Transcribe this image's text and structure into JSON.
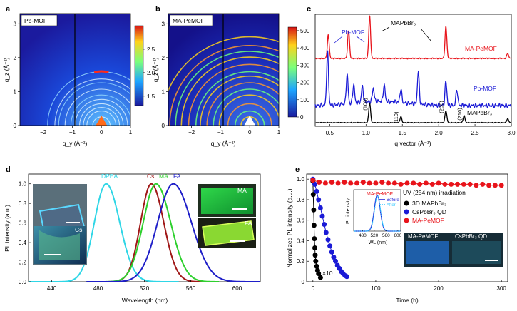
{
  "figure": {
    "panels": [
      "a",
      "b",
      "c",
      "d",
      "e"
    ]
  },
  "chart_data": [
    {
      "id": "a",
      "type": "heatmap",
      "inset_label": "Pb-MOF",
      "xlabel": "q_y (Å⁻¹)",
      "ylabel": "q_z (Å⁻¹)",
      "xlim": [
        -2.8,
        1.0
      ],
      "ylim": [
        0,
        3.3
      ],
      "xticks": [
        "−2",
        "−1",
        "0",
        "1"
      ],
      "yticks": [
        "0",
        "1",
        "2",
        "3"
      ],
      "colorbar": {
        "range": [
          1.3,
          3.0
        ],
        "ticks": [
          "1.5",
          "2.0",
          "2.5"
        ]
      },
      "rings_q": [
        0.3,
        0.5,
        0.62,
        0.75,
        0.9,
        1.05,
        1.25,
        1.47,
        1.6,
        1.85
      ],
      "bright_arc_q": 1.85
    },
    {
      "id": "b",
      "type": "heatmap",
      "inset_label": "MA-PeMOF",
      "xlabel": "q_y (Å⁻¹)",
      "ylabel": "q_z (Å⁻¹)",
      "xlim": [
        -2.8,
        1.0
      ],
      "ylim": [
        0,
        3.3
      ],
      "xticks": [
        "−2",
        "−1",
        "0",
        "1"
      ],
      "yticks": [
        "0",
        "1",
        "2",
        "3"
      ],
      "colorbar": {
        "range": [
          0,
          520
        ],
        "ticks": [
          "0",
          "100",
          "200",
          "300",
          "400",
          "500"
        ]
      },
      "rings_q": [
        0.3,
        0.5,
        0.75,
        1.05,
        1.25,
        1.47,
        1.7,
        1.85,
        2.1,
        2.35,
        2.55,
        2.75,
        3.05
      ]
    },
    {
      "id": "c",
      "type": "line",
      "xlabel": "q vector (Å⁻¹)",
      "xlim": [
        0.3,
        3.0
      ],
      "xticks": [
        "0.5",
        "1.0",
        "1.5",
        "2.0",
        "2.5",
        "3.0"
      ],
      "series": [
        {
          "name": "MA-PeMOF",
          "color": "#e8141b",
          "peaks": [
            [
              0.48,
              0.55
            ],
            [
              0.76,
              0.65
            ],
            [
              1.05,
              1.0
            ],
            [
              2.1,
              0.75
            ],
            [
              2.95,
              0.12
            ]
          ]
        },
        {
          "name": "Pb-MOF",
          "color": "#1a1ad6",
          "peaks": [
            [
              0.47,
              1.0
            ],
            [
              0.74,
              0.55
            ],
            [
              0.83,
              0.35
            ],
            [
              0.95,
              0.3
            ],
            [
              1.1,
              0.25
            ],
            [
              1.25,
              0.3
            ],
            [
              1.48,
              0.25
            ],
            [
              1.72,
              0.6
            ],
            [
              2.1,
              0.45
            ],
            [
              2.25,
              0.3
            ]
          ]
        },
        {
          "name": "MAPbBr₃",
          "color": "#000000",
          "peaks": [
            [
              1.05,
              1.0
            ],
            [
              1.48,
              0.3
            ],
            [
              2.1,
              0.6
            ],
            [
              2.35,
              0.35
            ],
            [
              2.95,
              0.2
            ]
          ]
        }
      ],
      "miller": [
        "(100)",
        "(110)",
        "(200)",
        "(210)"
      ],
      "annotations": [
        "Pb-MOF",
        "MAPbBr₃"
      ]
    },
    {
      "id": "d",
      "type": "line",
      "xlabel": "Wavelength (nm)",
      "ylabel": "PL intensity (a.u.)",
      "xlim": [
        420,
        620
      ],
      "ylim": [
        0,
        1.1
      ],
      "xticks": [
        "440",
        "480",
        "520",
        "560",
        "600"
      ],
      "yticks": [
        "0.0",
        "0.2",
        "0.4",
        "0.6",
        "0.8",
        "1.0"
      ],
      "series": [
        {
          "name": "DPEA",
          "color": "#2fd6e6",
          "peak_nm": 487,
          "fwhm_nm": 24,
          "range": [
            420,
            550
          ]
        },
        {
          "name": "Cs",
          "color": "#a01818",
          "peak_nm": 526,
          "fwhm_nm": 22,
          "range": [
            470,
            575
          ]
        },
        {
          "name": "MA",
          "color": "#2ed02e",
          "peak_nm": 530,
          "fwhm_nm": 26,
          "range": [
            470,
            585
          ]
        },
        {
          "name": "FA",
          "color": "#1e1ec8",
          "peak_nm": 545,
          "fwhm_nm": 32,
          "range": [
            470,
            620
          ]
        }
      ],
      "photo_labels": [
        "Cs",
        "MA",
        "FA"
      ]
    },
    {
      "id": "e",
      "type": "scatter",
      "xlabel": "Time (h)",
      "ylabel": "Normalized PL intensity (a.u.)",
      "xlim": [
        -10,
        310
      ],
      "ylim": [
        0,
        1.05
      ],
      "xticks": [
        "0",
        "100",
        "200",
        "300"
      ],
      "yticks": [
        "0",
        "0.2",
        "0.4",
        "0.6",
        "0.8",
        "1.0"
      ],
      "legend_title": "UV (254 nm) irradiation",
      "series": [
        {
          "name": "3D MAPbBr₃",
          "color": "#000000",
          "x": [
            0,
            0.2,
            0.4,
            0.6,
            0.8,
            1,
            1.2,
            1.5,
            2,
            2.5,
            3,
            4
          ],
          "y": [
            0.98,
            0.85,
            0.7,
            0.55,
            0.42,
            0.33,
            0.26,
            0.2,
            0.15,
            0.11,
            0.08,
            0.04
          ]
        },
        {
          "name": "CsPbBr₃ QD",
          "color": "#1a1ad6",
          "x": [
            0,
            1,
            2,
            3,
            4,
            5,
            6,
            7,
            8,
            9,
            10,
            11,
            12,
            13,
            14,
            15,
            16,
            17,
            18
          ],
          "y": [
            1.0,
            0.95,
            0.88,
            0.8,
            0.72,
            0.64,
            0.56,
            0.48,
            0.41,
            0.35,
            0.29,
            0.24,
            0.2,
            0.16,
            0.13,
            0.1,
            0.08,
            0.06,
            0.05
          ]
        },
        {
          "name": "MA-PeMOF",
          "color": "#e8141b",
          "x": [
            0,
            10,
            20,
            30,
            40,
            50,
            60,
            70,
            80,
            90,
            100,
            110,
            120,
            130,
            140,
            150,
            160,
            170,
            180,
            190,
            200,
            210,
            220,
            230,
            240,
            250,
            260,
            270,
            280,
            290,
            300
          ],
          "y": [
            0.99,
            0.97,
            0.96,
            0.97,
            0.96,
            0.97,
            0.96,
            0.96,
            0.97,
            0.96,
            0.96,
            0.97,
            0.96,
            0.96,
            0.95,
            0.96,
            0.96,
            0.95,
            0.96,
            0.95,
            0.96,
            0.95,
            0.95,
            0.95,
            0.95,
            0.95,
            0.94,
            0.95,
            0.94,
            0.94,
            0.94
          ]
        }
      ],
      "annotation": "×10",
      "inset": {
        "title": "MA-PeMOF",
        "xlabel": "WL (nm)",
        "ylabel": "PL intensity",
        "xticks": [
          "480",
          "520",
          "560",
          "600"
        ],
        "legend": [
          "Before",
          "After"
        ]
      },
      "photo_labels": [
        "MA-PeMOF",
        "CsPbBr₃ QD"
      ]
    }
  ]
}
